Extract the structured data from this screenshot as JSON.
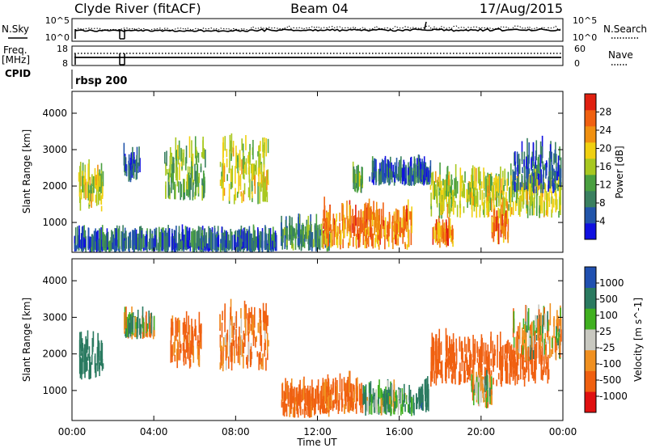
{
  "header": {
    "station": "Clyde River (fitACF)",
    "beam": "Beam 04",
    "date": "17/Aug/2015"
  },
  "nsky_panel": {
    "left_label": "N.Sky",
    "left_ticks": [
      "10^5",
      "10^0"
    ],
    "right_label": "N.Search",
    "right_ticks": [
      "10^5",
      "10^0"
    ]
  },
  "freq_panel": {
    "left_label_top": "Freq.",
    "left_label_unit": "[MHz]",
    "left_ticks": [
      "18",
      "8"
    ],
    "right_label": "Nave",
    "right_ticks": [
      "60",
      "0"
    ]
  },
  "cpid": {
    "label": "CPID",
    "value": "rbsp 200"
  },
  "time_axis": {
    "label": "Time UT",
    "ticks": [
      "00:00",
      "04:00",
      "08:00",
      "12:00",
      "16:00",
      "20:00",
      "00:00"
    ]
  },
  "colors": {
    "power": [
      "#1010e0",
      "#2255aa",
      "#3a8060",
      "#4aa040",
      "#a8c820",
      "#f0d010",
      "#f09010",
      "#f06010",
      "#e02010"
    ],
    "velocity": [
      "#e01010",
      "#f06010",
      "#f09020",
      "#c8c8c0",
      "#40b020",
      "#2a7a60",
      "#2050b0"
    ]
  },
  "chart_data": [
    {
      "type": "heatmap",
      "title": "",
      "xlabel": "",
      "ylabel": "Slant Range [km]",
      "xlim": [
        0,
        24
      ],
      "ylim": [
        180,
        4600
      ],
      "y_ticks": [
        1000,
        2000,
        3000,
        4000
      ],
      "colorbar_label": "Power [dB]",
      "colorbar_ticks": [
        4,
        8,
        12,
        16,
        20,
        24,
        28
      ],
      "colorbar_range": [
        0,
        32
      ],
      "echo_regions": [
        {
          "t_start": 0.1,
          "t_end": 10.0,
          "r_start": 180,
          "r_end": 350,
          "level": "mixed-low"
        },
        {
          "t_start": 0.3,
          "t_end": 1.5,
          "r_start": 1300,
          "r_end": 2200,
          "level": "mid-high"
        },
        {
          "t_start": 2.5,
          "t_end": 3.3,
          "r_start": 2100,
          "r_end": 2600,
          "level": "low"
        },
        {
          "t_start": 4.5,
          "t_end": 6.5,
          "r_start": 1600,
          "r_end": 2800,
          "level": "mid"
        },
        {
          "t_start": 7.2,
          "t_end": 9.6,
          "r_start": 1500,
          "r_end": 3000,
          "level": "mid-high"
        },
        {
          "t_start": 10.2,
          "t_end": 12.6,
          "r_start": 200,
          "r_end": 700,
          "level": "low-mid"
        },
        {
          "t_start": 12.2,
          "t_end": 16.6,
          "r_start": 250,
          "r_end": 1100,
          "level": "high"
        },
        {
          "t_start": 13.7,
          "t_end": 14.2,
          "r_start": 1800,
          "r_end": 2100,
          "level": "mid"
        },
        {
          "t_start": 14.5,
          "t_end": 17.5,
          "r_start": 2000,
          "r_end": 2300,
          "level": "low"
        },
        {
          "t_start": 17.6,
          "t_end": 18.6,
          "r_start": 300,
          "r_end": 700,
          "level": "high"
        },
        {
          "t_start": 17.5,
          "t_end": 23.9,
          "r_start": 1100,
          "r_end": 2100,
          "level": "mid-high"
        },
        {
          "t_start": 20.5,
          "t_end": 21.3,
          "r_start": 400,
          "r_end": 1000,
          "level": "high"
        },
        {
          "t_start": 21.5,
          "t_end": 23.9,
          "r_start": 1800,
          "r_end": 2800,
          "level": "low"
        }
      ]
    },
    {
      "type": "heatmap",
      "title": "",
      "xlabel": "Time UT",
      "ylabel": "Slant Range [km]",
      "xlim": [
        0,
        24
      ],
      "ylim": [
        180,
        4600
      ],
      "y_ticks": [
        1000,
        2000,
        3000,
        4000
      ],
      "colorbar_label": "Velocity [m s^-1]",
      "colorbar_ticks": [
        -1000,
        -500,
        -100,
        -25,
        25,
        100,
        500,
        1000
      ],
      "echo_regions": [
        {
          "t_start": 0.3,
          "t_end": 1.5,
          "r_start": 1300,
          "r_end": 2200,
          "velocity": 300
        },
        {
          "t_start": 2.5,
          "t_end": 4.0,
          "r_start": 2400,
          "r_end": 2700,
          "velocity": 0
        },
        {
          "t_start": 4.8,
          "t_end": 6.3,
          "r_start": 1600,
          "r_end": 2600,
          "velocity": -200
        },
        {
          "t_start": 7.2,
          "t_end": 9.6,
          "r_start": 1500,
          "r_end": 3000,
          "velocity": -150
        },
        {
          "t_start": 10.2,
          "t_end": 12.6,
          "r_start": 250,
          "r_end": 800,
          "velocity": -200
        },
        {
          "t_start": 12.2,
          "t_end": 14.2,
          "r_start": 350,
          "r_end": 1000,
          "velocity": -200
        },
        {
          "t_start": 14.2,
          "t_end": 16.7,
          "r_start": 300,
          "r_end": 800,
          "velocity": 100
        },
        {
          "t_start": 16.8,
          "t_end": 17.4,
          "r_start": 400,
          "r_end": 900,
          "velocity": 400
        },
        {
          "t_start": 17.5,
          "t_end": 23.3,
          "r_start": 1100,
          "r_end": 2100,
          "velocity": -300
        },
        {
          "t_start": 19.5,
          "t_end": 20.5,
          "r_start": 500,
          "r_end": 1100,
          "velocity": 0
        },
        {
          "t_start": 21.5,
          "t_end": 23.9,
          "r_start": 1800,
          "r_end": 2800,
          "velocity": 0
        }
      ]
    }
  ]
}
